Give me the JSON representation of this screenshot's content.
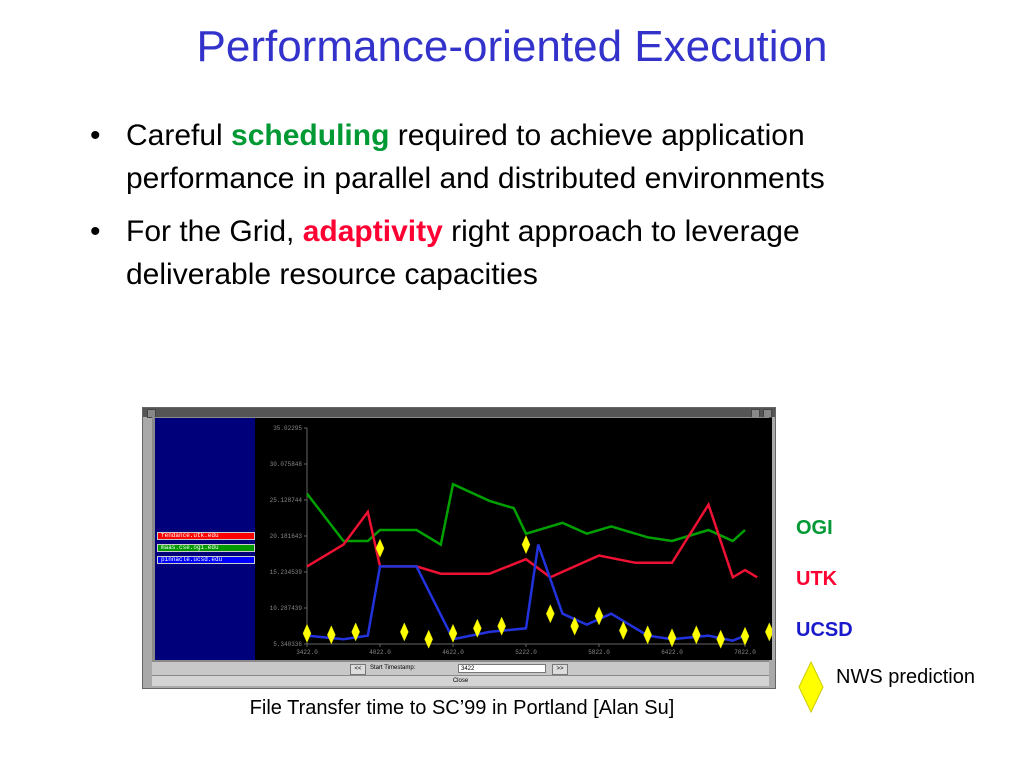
{
  "slide": {
    "title": "Performance-oriented Execution",
    "bullets": [
      {
        "pre": "Careful ",
        "highlight": "scheduling",
        "post": " required to achieve application performance in parallel and distributed environments",
        "highlight_color": "#009933"
      },
      {
        "pre": "For the Grid, ",
        "highlight": "adaptivity",
        "post": " right approach to leverage deliverable resource capacities",
        "highlight_color": "#ff0033"
      }
    ],
    "caption": "File Transfer time to SC’99 in Portland [Alan Su]"
  },
  "window": {
    "legend": [
      {
        "host": "fendance.utk.edu",
        "color": "#ff0000"
      },
      {
        "host": "maas.cse.ogi.edu",
        "color": "#009900"
      },
      {
        "host": "pinnacle.ucsd.edu",
        "color": "#0000ff"
      }
    ],
    "controls": {
      "prev_label": "<<",
      "start_label": "Start Timestamp:",
      "start_value": "3422",
      "next_label": ">>",
      "close_label": "Close"
    }
  },
  "series_labels": [
    {
      "name": "OGI",
      "color": "#009933"
    },
    {
      "name": "UTK",
      "color": "#ff0033"
    },
    {
      "name": "UCSD",
      "color": "#1a1acc"
    }
  ],
  "nws": {
    "label": "NWS prediction",
    "color": "#ffff00"
  },
  "chart_data": {
    "type": "line",
    "x": [
      3422,
      3722,
      4022,
      4322,
      4622,
      4922,
      5222,
      5522,
      5822,
      6122,
      6422,
      6722,
      7022
    ],
    "x_ticks": [
      "3422.0",
      "4022.0",
      "4622.0",
      "5222.0",
      "5822.0",
      "6422.0",
      "7022.0"
    ],
    "y_ticks": [
      "35.02295",
      "30.075848",
      "25.128744",
      "20.181643",
      "15.234539",
      "10.287439",
      "5.340336"
    ],
    "ylim": [
      5.340336,
      35.02295
    ],
    "series": [
      {
        "name": "maas.cse.ogi.edu",
        "color": "#00a000",
        "points": [
          [
            3422,
            26.0
          ],
          [
            3722,
            19.5
          ],
          [
            3922,
            19.5
          ],
          [
            4022,
            21.0
          ],
          [
            4322,
            21.0
          ],
          [
            4522,
            19.0
          ],
          [
            4622,
            27.3
          ],
          [
            4922,
            25.0
          ],
          [
            5122,
            24.0
          ],
          [
            5222,
            20.5
          ],
          [
            5522,
            22.0
          ],
          [
            5722,
            20.5
          ],
          [
            5922,
            21.5
          ],
          [
            6222,
            20.0
          ],
          [
            6422,
            19.5
          ],
          [
            6722,
            21.0
          ],
          [
            6922,
            19.5
          ],
          [
            7022,
            21.0
          ]
        ]
      },
      {
        "name": "fendance.utk.edu",
        "color": "#ee1133",
        "points": [
          [
            3422,
            16.0
          ],
          [
            3722,
            19.0
          ],
          [
            3922,
            23.5
          ],
          [
            4022,
            16.0
          ],
          [
            4322,
            16.0
          ],
          [
            4522,
            15.0
          ],
          [
            4922,
            15.0
          ],
          [
            5222,
            17.0
          ],
          [
            5422,
            14.5
          ],
          [
            5822,
            17.5
          ],
          [
            6122,
            16.5
          ],
          [
            6422,
            16.5
          ],
          [
            6722,
            24.5
          ],
          [
            6922,
            14.5
          ],
          [
            7022,
            15.5
          ],
          [
            7122,
            14.5
          ]
        ]
      },
      {
        "name": "pinnacle.ucsd.edu",
        "color": "#2233dd",
        "points": [
          [
            3422,
            6.5
          ],
          [
            3722,
            6.0
          ],
          [
            3922,
            6.5
          ],
          [
            4022,
            16.0
          ],
          [
            4322,
            16.0
          ],
          [
            4622,
            6.0
          ],
          [
            4922,
            7.0
          ],
          [
            5222,
            7.5
          ],
          [
            5322,
            19.0
          ],
          [
            5522,
            9.5
          ],
          [
            5722,
            8.0
          ],
          [
            5922,
            9.5
          ],
          [
            6222,
            6.5
          ],
          [
            6422,
            6.0
          ],
          [
            6722,
            6.5
          ],
          [
            6922,
            5.8
          ],
          [
            7022,
            6.5
          ]
        ]
      }
    ],
    "nws_predictions": [
      [
        3422,
        6.8
      ],
      [
        3622,
        6.6
      ],
      [
        3822,
        7.0
      ],
      [
        4022,
        18.5
      ],
      [
        4222,
        7.0
      ],
      [
        4422,
        6.0
      ],
      [
        4622,
        6.8
      ],
      [
        4822,
        7.5
      ],
      [
        5022,
        7.8
      ],
      [
        5222,
        19.0
      ],
      [
        5422,
        9.5
      ],
      [
        5622,
        7.8
      ],
      [
        5822,
        9.2
      ],
      [
        6022,
        7.2
      ],
      [
        6222,
        6.6
      ],
      [
        6422,
        6.2
      ],
      [
        6622,
        6.6
      ],
      [
        6822,
        6.0
      ],
      [
        7022,
        6.4
      ],
      [
        7222,
        7.0
      ]
    ]
  }
}
